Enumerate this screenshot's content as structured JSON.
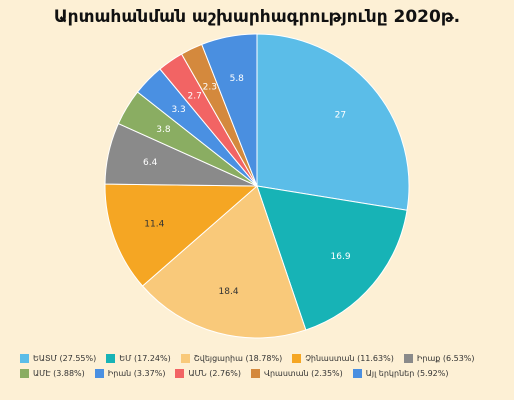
{
  "chart_data": {
    "type": "pie",
    "title": "Արտահանման աշխարհագրությունը 2020թ.",
    "categories": [
      "ԵԱՏՄ (27.55%)",
      "ԵՄ (17.24%)",
      "Շվեյցարիա (18.78%)",
      "Չինաստան (11.63%)",
      "Իրաք (6.53%)",
      "ԱՄԷ (3.88%)",
      "Իրան (3.37%)",
      "ԱՄՆ (2.76%)",
      "Վրաստան (2.35%)",
      "Այլ երկրներ (5.92%)"
    ],
    "values": [
      27,
      16.9,
      18.4,
      11.4,
      6.4,
      3.8,
      3.3,
      2.7,
      2.3,
      5.8
    ],
    "colors": [
      "#5bbde8",
      "#17b3b6",
      "#f9c97a",
      "#f5a623",
      "#8a8a8a",
      "#8aad62",
      "#4a90e2",
      "#f26464",
      "#d4893d",
      "#4a8fe0"
    ],
    "legend": "bottom"
  }
}
